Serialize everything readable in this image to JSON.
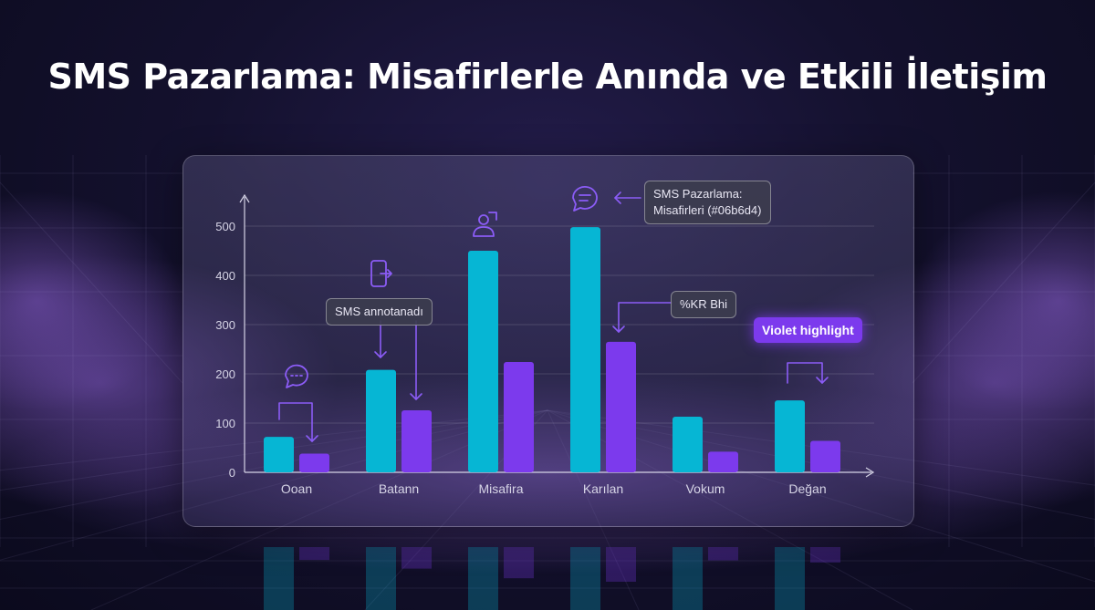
{
  "page": {
    "title": "SMS Pazarlama: Misafirlerle Anında ve Etkili İletişim"
  },
  "colors": {
    "primary": "#06b6d4",
    "secondary": "#7c3aed",
    "icon": "#8b5cf6"
  },
  "chart_data": {
    "type": "bar",
    "title": "",
    "xlabel": "",
    "ylabel": "",
    "ylim": [
      0,
      500
    ],
    "yticks": [
      0,
      100,
      200,
      300,
      400,
      500
    ],
    "grid": true,
    "categories": [
      "Ooan",
      "Batann",
      "Misafira",
      "Karılan",
      "Vokum",
      "Değan"
    ],
    "series": [
      {
        "values": [
          72,
          208,
          450,
          498,
          113,
          146
        ]
      },
      {
        "values": [
          38,
          126,
          224,
          265,
          42,
          64
        ]
      }
    ],
    "annotations": [
      {
        "id": "sms-annotation",
        "text": "SMS annotanadı"
      },
      {
        "id": "sms-pazarlama-annotation",
        "text": "SMS Pazarlama:\nMisafirleri (#06b6d4)"
      },
      {
        "id": "kr-annotation",
        "text": "%KR Bhi"
      },
      {
        "id": "violet-annotation",
        "text": "Violet highlight"
      }
    ],
    "icons": [
      "chat-bubble-icon",
      "phone-exit-icon",
      "user-icon",
      "chat-lines-icon",
      "chat-bubble-icon"
    ]
  }
}
